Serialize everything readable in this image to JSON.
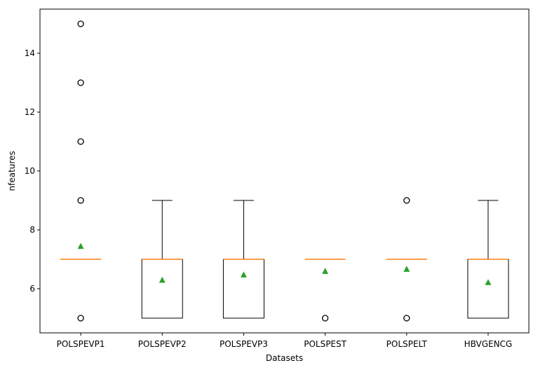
{
  "chart_data": {
    "type": "box",
    "xlabel": "Datasets",
    "ylabel": "nfeatures",
    "ylim": [
      4.5,
      15.5
    ],
    "yticks": [
      6,
      8,
      10,
      12,
      14
    ],
    "categories": [
      "POLSPEVP1",
      "POLSPEVP2",
      "POLSPEVP3",
      "POLSPEST",
      "POLSPELT",
      "HBVGENCG"
    ],
    "boxes": [
      {
        "category": "POLSPEVP1",
        "whisker_low": 7,
        "q1": 7,
        "median": 7,
        "q3": 7,
        "whisker_high": 7,
        "mean": 7.45,
        "outliers": [
          5,
          9,
          11,
          13,
          15
        ]
      },
      {
        "category": "POLSPEVP2",
        "whisker_low": 5,
        "q1": 5,
        "median": 7,
        "q3": 7,
        "whisker_high": 9,
        "mean": 6.3,
        "outliers": []
      },
      {
        "category": "POLSPEVP3",
        "whisker_low": 5,
        "q1": 5,
        "median": 7,
        "q3": 7,
        "whisker_high": 9,
        "mean": 6.48,
        "outliers": []
      },
      {
        "category": "POLSPEST",
        "whisker_low": 7,
        "q1": 7,
        "median": 7,
        "q3": 7,
        "whisker_high": 7,
        "mean": 6.6,
        "outliers": [
          5
        ]
      },
      {
        "category": "POLSPELT",
        "whisker_low": 7,
        "q1": 7,
        "median": 7,
        "q3": 7,
        "whisker_high": 7,
        "mean": 6.67,
        "outliers": [
          5,
          9
        ]
      },
      {
        "category": "HBVGENCG",
        "whisker_low": 5,
        "q1": 5,
        "median": 7,
        "q3": 7,
        "whisker_high": 9,
        "mean": 6.22,
        "outliers": []
      }
    ],
    "grid": false,
    "colors": {
      "box": "#000000",
      "median": "#ff7f0e",
      "mean": "#2ca02c",
      "outlier": "#000000"
    }
  }
}
